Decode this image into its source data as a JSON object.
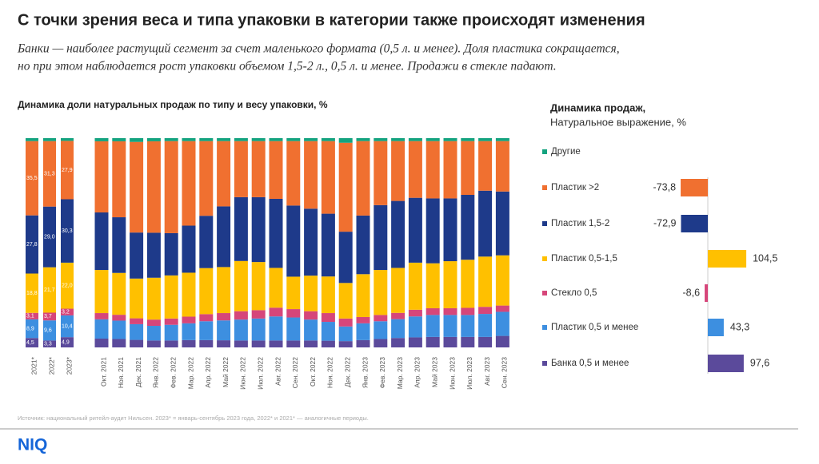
{
  "title": "С точки зрения веса и типа упаковки в категории также происходят изменения",
  "subtitle": [
    "Банки — наиболее растущий сегмент за счет маленького формата (0,5 л. и менее). Доля пластика сокращается,",
    "но при этом наблюдается рост упаковки объемом 1,5-2 л., 0,5 л. и менее. Продажи в стекле падают."
  ],
  "source": "Источник: национальный ритейл-аудит Нильсен. 2023* = январь-сентябрь 2023 года, 2022* и 2021* — аналогичные периоды.",
  "logo": "NIQ",
  "chart_data": [
    {
      "type": "stacked_bar",
      "title": "Динамика доли натуральных продаж по типу и весу упаковки, %",
      "ylim": [
        0,
        100
      ],
      "categories": [
        "2021*",
        "2022*",
        "2023*",
        "Окт. 2021",
        "Ноя. 2021",
        "Дек. 2021",
        "Янв. 2022",
        "Фев. 2022",
        "Мар. 2022",
        "Апр. 2022",
        "Май 2022",
        "Июн. 2022",
        "Июл. 2022",
        "Авг. 2022",
        "Сен. 2022",
        "Окт. 2022",
        "Ноя. 2022",
        "Дек. 2022",
        "Янв. 2023",
        "Фев. 2023",
        "Мар. 2023",
        "Апр. 2023",
        "Май 2023",
        "Июн. 2023",
        "Июл. 2023",
        "Авг. 2023",
        "Сен. 2023"
      ],
      "series": [
        {
          "name": "Банка 0,5 и менее",
          "color": "#5b4a9b",
          "values": [
            4.5,
            3.3,
            4.9,
            4.2,
            4.0,
            3.6,
            3.3,
            3.3,
            3.5,
            3.5,
            3.4,
            3.3,
            3.3,
            3.3,
            3.3,
            3.3,
            3.2,
            3.0,
            3.5,
            4.0,
            4.5,
            4.8,
            5.0,
            5.0,
            5.0,
            5.0,
            5.5
          ],
          "value_labels": [
            "4,5",
            "3,3",
            "4,9",
            null,
            null,
            null,
            null,
            null,
            null,
            null,
            null,
            null,
            null,
            null,
            null,
            null,
            null,
            null,
            null,
            null,
            null,
            null,
            null,
            null,
            null,
            null,
            null
          ]
        },
        {
          "name": "Пластик 0,5 и менее",
          "color": "#3d8fe0",
          "values": [
            8.9,
            9.6,
            10.4,
            9.2,
            8.8,
            7.5,
            7.0,
            7.5,
            8.0,
            9.0,
            9.5,
            10.0,
            10.5,
            11.5,
            11.0,
            10.0,
            9.0,
            7.0,
            8.0,
            8.5,
            9.0,
            10.0,
            10.5,
            10.5,
            10.5,
            11.0,
            11.5
          ],
          "value_labels": [
            "8,9",
            "9,6",
            "10,4",
            null,
            null,
            null,
            null,
            null,
            null,
            null,
            null,
            null,
            null,
            null,
            null,
            null,
            null,
            null,
            null,
            null,
            null,
            null,
            null,
            null,
            null,
            null,
            null
          ]
        },
        {
          "name": "Стекло 0,5",
          "color": "#d6467a",
          "values": [
            3.1,
            3.7,
            3.2,
            3.0,
            2.8,
            2.8,
            3.0,
            3.0,
            3.2,
            3.4,
            3.5,
            4.0,
            4.0,
            4.2,
            4.0,
            4.0,
            4.2,
            3.8,
            3.0,
            3.0,
            3.0,
            3.2,
            3.2,
            3.2,
            3.4,
            3.4,
            3.0
          ],
          "value_labels": [
            "3,1",
            "3,7",
            "3,2",
            null,
            null,
            null,
            null,
            null,
            null,
            null,
            null,
            null,
            null,
            null,
            null,
            null,
            null,
            null,
            null,
            null,
            null,
            null,
            null,
            null,
            null,
            null,
            null
          ]
        },
        {
          "name": "Пластик 0,5-1,5",
          "color": "#ffc000",
          "values": [
            18.8,
            21.7,
            22.0,
            20.6,
            20.0,
            19.0,
            20.0,
            20.6,
            21.0,
            22.0,
            22.0,
            24.0,
            23.0,
            19.0,
            15.5,
            17.0,
            17.5,
            17.0,
            20.5,
            21.5,
            21.5,
            22.5,
            21.5,
            22.5,
            23.0,
            24.0,
            24.0
          ],
          "value_labels": [
            "18,8",
            "21,7",
            "22,0",
            null,
            null,
            null,
            null,
            null,
            null,
            null,
            null,
            null,
            null,
            null,
            null,
            null,
            null,
            null,
            null,
            null,
            null,
            null,
            null,
            null,
            null,
            null,
            null
          ]
        },
        {
          "name": "Пластик 1,5-2",
          "color": "#1e3a8a",
          "values": [
            27.8,
            29.0,
            30.3,
            27.5,
            26.6,
            22.0,
            21.5,
            20.2,
            22.5,
            25.0,
            29.0,
            30.5,
            31.0,
            33.0,
            34.0,
            32.0,
            30.0,
            24.5,
            28.0,
            31.0,
            32.0,
            31.0,
            31.0,
            30.0,
            31.0,
            31.5,
            30.5
          ],
          "value_labels": [
            "27,8",
            "29,0",
            "30,3",
            null,
            null,
            null,
            null,
            null,
            null,
            null,
            null,
            null,
            null,
            null,
            null,
            null,
            null,
            null,
            null,
            null,
            null,
            null,
            null,
            null,
            null,
            null,
            null
          ]
        },
        {
          "name": "Пластик >2",
          "color": "#f07030",
          "values": [
            35.5,
            31.3,
            27.9,
            34.0,
            36.3,
            43.3,
            43.7,
            44.0,
            40.4,
            35.7,
            31.2,
            26.8,
            26.8,
            27.6,
            30.8,
            32.3,
            34.7,
            42.5,
            35.6,
            30.6,
            28.6,
            27.1,
            27.4,
            27.4,
            25.7,
            23.7,
            24.1
          ],
          "value_labels": [
            "35,5",
            "31,3",
            "27,9",
            null,
            null,
            null,
            null,
            null,
            null,
            null,
            null,
            null,
            null,
            null,
            null,
            null,
            null,
            null,
            null,
            null,
            null,
            null,
            null,
            null,
            null,
            null,
            null
          ]
        },
        {
          "name": "Другие",
          "color": "#14a37f",
          "values": [
            1.4,
            1.4,
            1.3,
            1.5,
            1.5,
            1.8,
            1.5,
            1.4,
            1.4,
            1.4,
            1.4,
            1.4,
            1.4,
            1.4,
            1.4,
            1.4,
            1.4,
            2.2,
            1.4,
            1.4,
            1.4,
            1.4,
            1.4,
            1.4,
            1.4,
            1.4,
            1.4
          ]
        }
      ]
    },
    {
      "type": "hbar",
      "title": "Динамика продаж,",
      "subtitle": "Натуральное выражение, %",
      "categories": [
        "Другие",
        "Пластик >2",
        "Пластик 1,5-2",
        "Пластик 0,5-1,5",
        "Стекло 0,5",
        "Пластик 0,5 и менее",
        "Банка 0,5 и менее"
      ],
      "colors": [
        "#14a37f",
        "#f07030",
        "#1e3a8a",
        "#ffc000",
        "#d6467a",
        "#3d8fe0",
        "#5b4a9b"
      ],
      "values": [
        null,
        -73.8,
        -72.9,
        104.5,
        -8.6,
        43.3,
        97.6
      ],
      "value_labels": [
        null,
        "-73,8",
        "-72,9",
        "104,5",
        "-8,6",
        "43,3",
        "97,6"
      ]
    }
  ]
}
